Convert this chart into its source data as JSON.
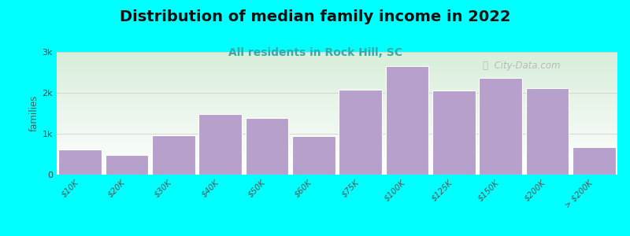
{
  "title": "Distribution of median family income in 2022",
  "subtitle": "All residents in Rock Hill, SC",
  "ylabel": "families",
  "background_color": "#00FFFF",
  "bar_color": "#b8a0cc",
  "categories": [
    "$10K",
    "$20K",
    "$30K",
    "$40K",
    "$50K",
    "$60K",
    "$75K",
    "$100K",
    "$125K",
    "$150K",
    "$200K",
    "> $200K"
  ],
  "values": [
    620,
    480,
    960,
    1490,
    1380,
    940,
    2080,
    2650,
    2060,
    2370,
    2120,
    680
  ],
  "bar_widths": [
    1,
    1,
    1,
    1,
    1,
    1,
    1,
    1,
    1,
    1,
    1,
    1
  ],
  "bar_lefts": [
    0,
    1,
    2,
    3,
    4,
    5,
    6,
    7,
    8,
    9,
    10,
    11
  ],
  "ylim": [
    0,
    3000
  ],
  "yticks": [
    0,
    1000,
    2000,
    3000
  ],
  "ytick_labels": [
    "0",
    "1k",
    "2k",
    "3k"
  ],
  "title_fontsize": 14,
  "subtitle_fontsize": 10,
  "subtitle_color": "#33aaaa",
  "watermark_text": "ⓘ  City-Data.com"
}
